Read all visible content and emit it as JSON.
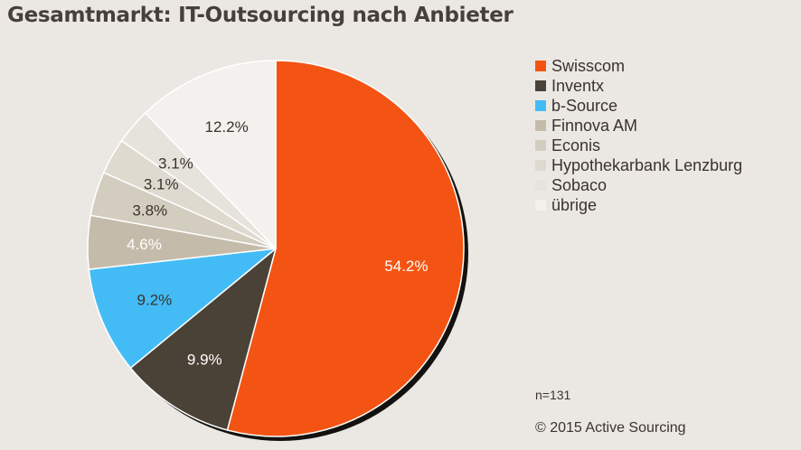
{
  "chart_data": {
    "type": "pie",
    "title": "Gesamtmarkt: IT-Outsourcing nach Anbieter",
    "slices": [
      {
        "name": "Swisscom",
        "value": 54.2,
        "label": "54.2%",
        "color": "#f45413",
        "text_color": "#ffffff"
      },
      {
        "name": "Inventx",
        "value": 9.9,
        "label": "9.9%",
        "color": "#4a4137",
        "text_color": "#ffffff"
      },
      {
        "name": "b-Source",
        "value": 9.2,
        "label": "9.2%",
        "color": "#43bcf6",
        "text_color": "#3a332d"
      },
      {
        "name": "Finnova AM",
        "value": 4.6,
        "label": "4.6%",
        "color": "#c5bbaa",
        "text_color": "#ffffff"
      },
      {
        "name": "Econis",
        "value": 3.8,
        "label": "3.8%",
        "color": "#d3cdc0",
        "text_color": "#3a332d"
      },
      {
        "name": "Hypothekarbank Lenzburg",
        "value": 3.1,
        "label": "3.1%",
        "color": "#dedad0",
        "text_color": "#3a332d"
      },
      {
        "name": "Sobaco",
        "value": 3.1,
        "label": "3.1%",
        "color": "#e6e3dc",
        "text_color": "#3a332d"
      },
      {
        "name": "übrige",
        "value": 12.2,
        "label": "12.2%",
        "color": "#f3f1ed",
        "text_color": "#3a332d"
      }
    ],
    "legend_position": "right"
  },
  "footnote": {
    "sample": "n=131",
    "copyright": "© 2015 Active Sourcing"
  }
}
